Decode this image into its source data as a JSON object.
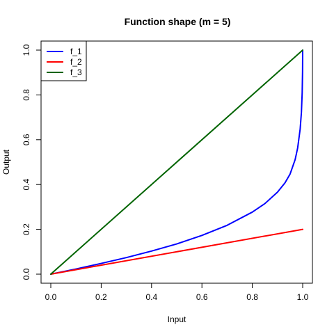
{
  "chart_data": {
    "type": "line",
    "title": "Function shape (m = 5)",
    "xlabel": "Input",
    "ylabel": "Output",
    "xlim": [
      0,
      1
    ],
    "ylim": [
      0,
      1
    ],
    "x_ticks": [
      "0.0",
      "0.2",
      "0.4",
      "0.6",
      "0.8",
      "1.0"
    ],
    "y_ticks": [
      "0.0",
      "0.2",
      "0.4",
      "0.6",
      "0.8",
      "1.0"
    ],
    "grid": false,
    "legend_position": "top-left",
    "series": [
      {
        "name": "f_1",
        "color": "#0000ff",
        "x": [
          0,
          0.1,
          0.2,
          0.3,
          0.4,
          0.5,
          0.6,
          0.7,
          0.8,
          0.85,
          0.9,
          0.93,
          0.95,
          0.97,
          0.98,
          0.99,
          0.995,
          0.998,
          0.9995,
          1.0
        ],
        "y": [
          0,
          0.023,
          0.048,
          0.074,
          0.103,
          0.135,
          0.173,
          0.218,
          0.277,
          0.315,
          0.366,
          0.408,
          0.447,
          0.511,
          0.563,
          0.648,
          0.723,
          0.81,
          0.904,
          1.0
        ]
      },
      {
        "name": "f_2",
        "color": "#ff0000",
        "x": [
          0,
          1.0
        ],
        "y": [
          0,
          0.2
        ]
      },
      {
        "name": "f_3",
        "color": "#006400",
        "x": [
          0,
          1.0
        ],
        "y": [
          0,
          1.0
        ]
      }
    ]
  }
}
